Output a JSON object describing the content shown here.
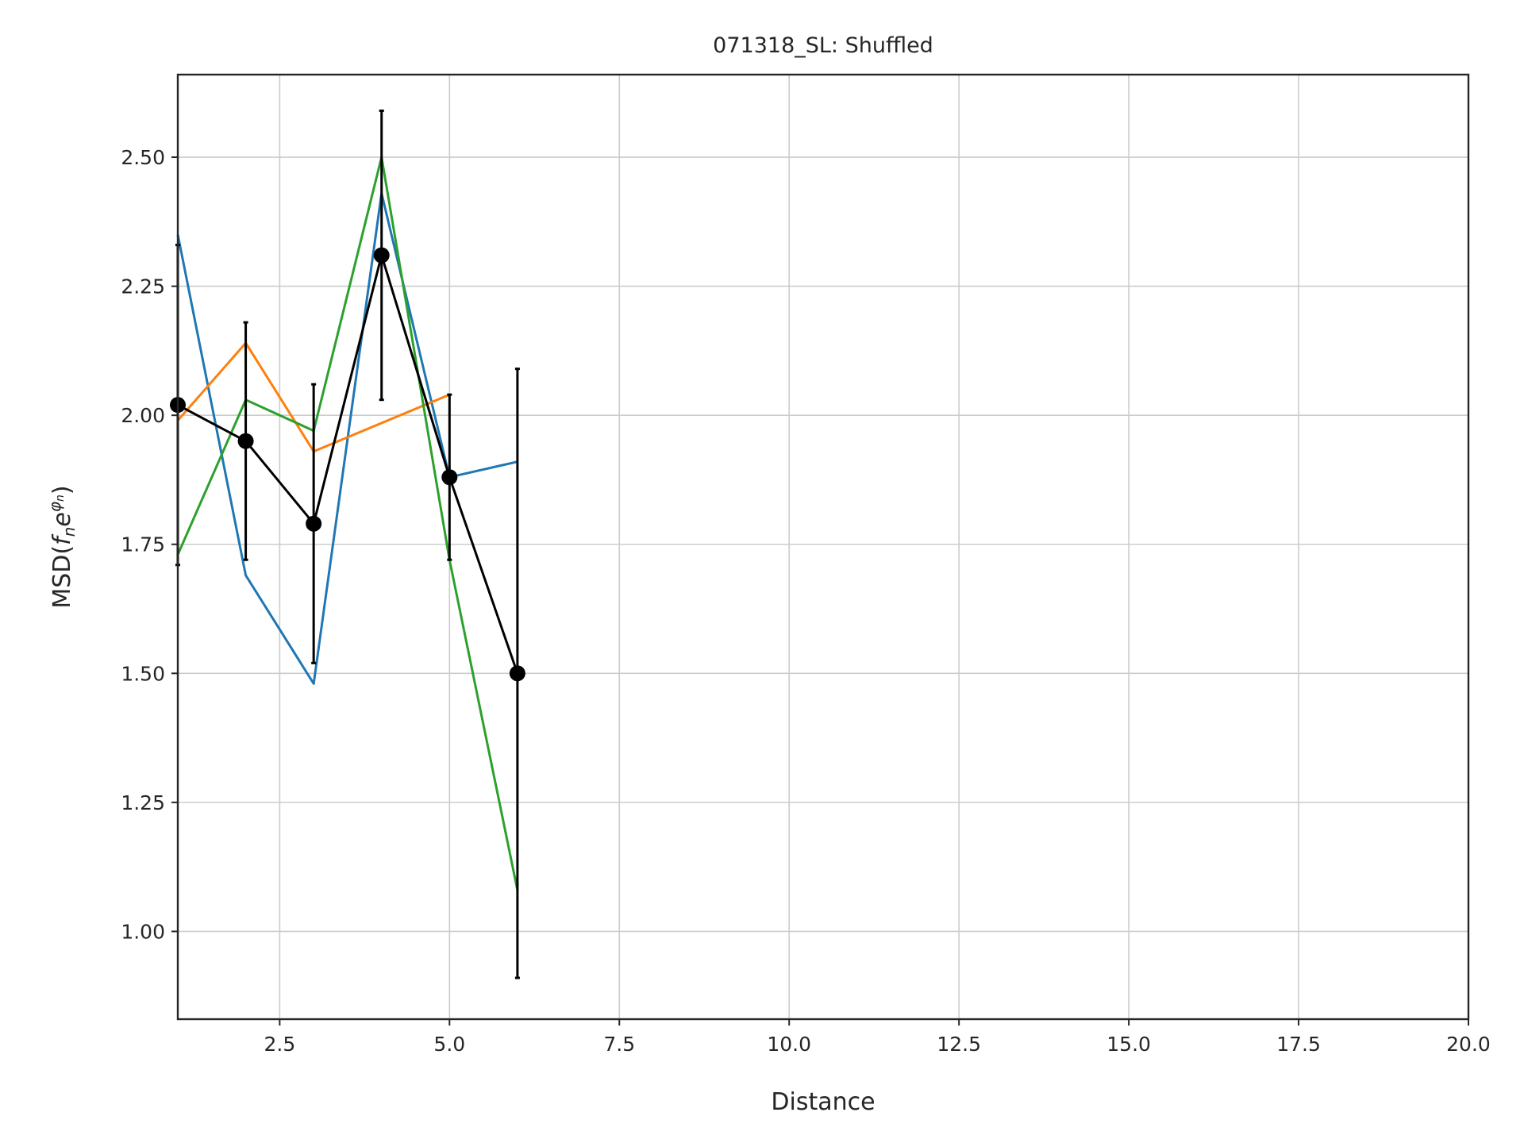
{
  "chart_data": {
    "type": "line",
    "title": "071318_SL: Shuffled",
    "xlabel": "Distance",
    "ylabel": "MSD(fₙe^φₙ)",
    "ylabel_parts": {
      "prefix": "MSD(",
      "f": "f",
      "n": "n",
      "e": "e",
      "phi": "φ",
      "n2": "n",
      "suffix": ")"
    },
    "xlim": [
      1,
      20
    ],
    "ylim": [
      0.83,
      2.66
    ],
    "grid": true,
    "xticks": [
      2.5,
      5.0,
      7.5,
      10.0,
      12.5,
      15.0,
      17.5,
      20.0
    ],
    "xtick_labels": [
      "2.5",
      "5.0",
      "7.5",
      "10.0",
      "12.5",
      "15.0",
      "17.5",
      "20.0"
    ],
    "yticks": [
      1.0,
      1.25,
      1.5,
      1.75,
      2.0,
      2.25,
      2.5
    ],
    "ytick_labels": [
      "1.00",
      "1.25",
      "1.50",
      "1.75",
      "2.00",
      "2.25",
      "2.50"
    ],
    "series": [
      {
        "color": "#1f77b4",
        "x": [
          1,
          2,
          3,
          4,
          5,
          6
        ],
        "y": [
          2.35,
          1.69,
          1.48,
          2.43,
          1.88,
          1.91
        ]
      },
      {
        "color": "#ff7f0e",
        "x": [
          1,
          2,
          3,
          5
        ],
        "y": [
          1.99,
          2.14,
          1.93,
          2.04
        ]
      },
      {
        "color": "#2ca02c",
        "x": [
          1,
          2,
          3,
          4,
          5,
          6
        ],
        "y": [
          1.73,
          2.03,
          1.97,
          2.5,
          1.72,
          1.08
        ]
      },
      {
        "color": "#000000",
        "markers": true,
        "x": [
          1,
          2,
          3,
          4,
          5,
          6
        ],
        "y": [
          2.02,
          1.95,
          1.79,
          2.31,
          1.88,
          1.5
        ],
        "err": [
          0.31,
          0.23,
          0.27,
          0.28,
          0.16,
          0.59
        ]
      }
    ]
  }
}
